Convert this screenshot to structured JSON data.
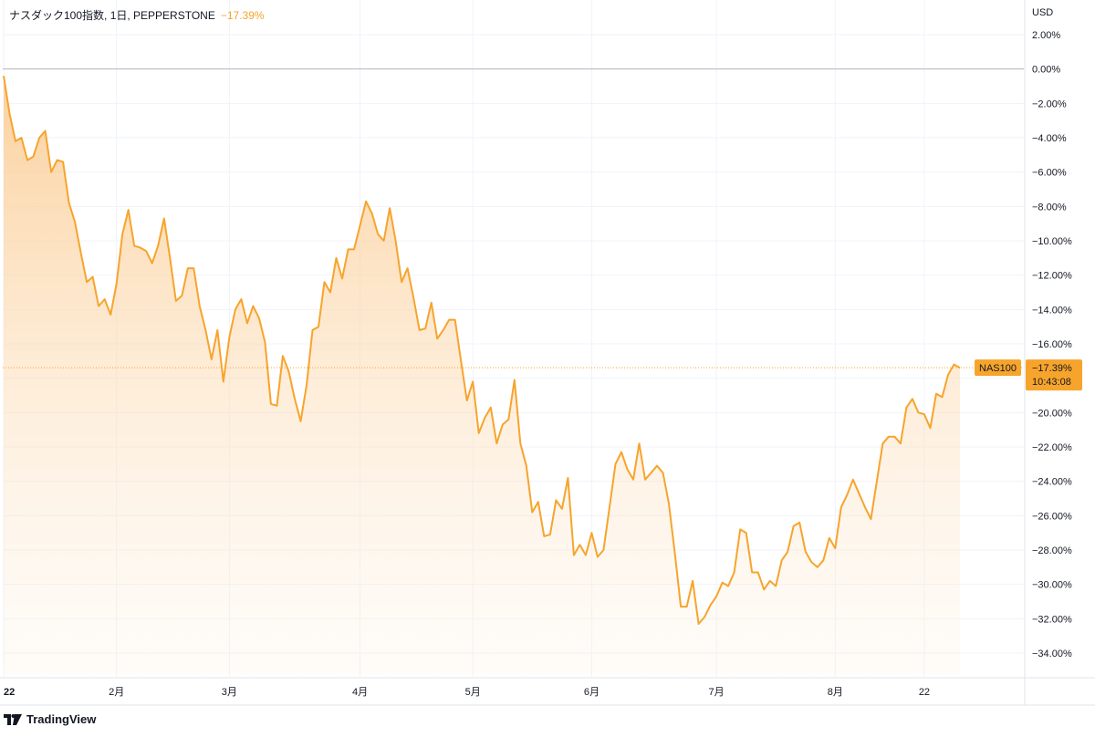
{
  "header": {
    "title": "ナスダック100指数, 1日, PEPPERSTONE",
    "change": "−17.39%"
  },
  "axis": {
    "currency": "USD"
  },
  "price_tag": {
    "symbol": "NAS100",
    "value": "−17.39%",
    "countdown": "10:43:08"
  },
  "branding": {
    "name": "TradingView"
  },
  "colors": {
    "line": "#f7a42c",
    "fill": "#fcd3a0",
    "grid": "#f0f3fa",
    "zero_line": "#b2b5be",
    "tag_bg": "#f7a42c"
  },
  "chart_data": {
    "type": "area",
    "title": "ナスダック100指数, 1日, PEPPERSTONE",
    "ylabel": "USD",
    "ylim": [
      -35.9,
      3.9
    ],
    "yticks": [
      2,
      0,
      -2,
      -4,
      -6,
      -8,
      -10,
      -12,
      -14,
      -16,
      -18,
      -20,
      -22,
      -24,
      -26,
      -28,
      -30,
      -32,
      -34
    ],
    "ytick_labels": [
      "2.00%",
      "0.00%",
      "−2.00%",
      "−4.00%",
      "−6.00%",
      "−8.00%",
      "−10.00%",
      "−12.00%",
      "−14.00%",
      "−16.00%",
      "−18.00%",
      "−20.00%",
      "−22.00%",
      "−24.00%",
      "−26.00%",
      "−28.00%",
      "−30.00%",
      "−32.00%",
      "−34.00%"
    ],
    "x_range": [
      0,
      161
    ],
    "xticks": [
      {
        "label": "22",
        "index": 0,
        "bold": true
      },
      {
        "label": "2月",
        "index": 19
      },
      {
        "label": "3月",
        "index": 38
      },
      {
        "label": "4月",
        "index": 60
      },
      {
        "label": "5月",
        "index": 79
      },
      {
        "label": "6月",
        "index": 99
      },
      {
        "label": "7月",
        "index": 120
      },
      {
        "label": "8月",
        "index": 140
      },
      {
        "label": "22",
        "index": 155
      }
    ],
    "reference_line": 0,
    "last_value": -17.39,
    "grid": true,
    "series": [
      {
        "values": [
          -0.4,
          -2.6,
          -4.2,
          -4.0,
          -5.3,
          -5.1,
          -4.0,
          -3.6,
          -6.0,
          -5.3,
          -5.4,
          -7.8,
          -8.9,
          -10.7,
          -12.4,
          -12.1,
          -13.8,
          -13.4,
          -14.3,
          -12.5,
          -9.6,
          -8.2,
          -10.3,
          -10.4,
          -10.6,
          -11.3,
          -10.3,
          -8.7,
          -11.0,
          -13.5,
          -13.2,
          -11.6,
          -11.6,
          -13.8,
          -15.2,
          -16.9,
          -15.2,
          -18.2,
          -15.6,
          -14.0,
          -13.4,
          -14.8,
          -13.8,
          -14.5,
          -15.9,
          -19.5,
          -19.6,
          -16.7,
          -17.6,
          -19.2,
          -20.5,
          -18.4,
          -15.2,
          -15.0,
          -12.4,
          -13.0,
          -11.0,
          -12.2,
          -10.5,
          -10.5,
          -9.1,
          -7.7,
          -8.4,
          -9.6,
          -10.0,
          -8.1,
          -10.0,
          -12.4,
          -11.6,
          -13.3,
          -15.2,
          -15.1,
          -13.6,
          -15.7,
          -15.2,
          -14.6,
          -14.6,
          -17.0,
          -19.3,
          -18.2,
          -21.2,
          -20.3,
          -19.7,
          -21.8,
          -20.7,
          -20.4,
          -18.1,
          -21.8,
          -23.1,
          -25.8,
          -25.2,
          -27.2,
          -27.1,
          -25.1,
          -25.6,
          -23.8,
          -28.3,
          -27.7,
          -28.3,
          -27.0,
          -28.4,
          -28.0,
          -25.5,
          -23.0,
          -22.3,
          -23.3,
          -23.9,
          -21.8,
          -23.9,
          -23.5,
          -23.1,
          -23.5,
          -25.3,
          -28.2,
          -31.3,
          -31.3,
          -29.8,
          -32.3,
          -31.9,
          -31.2,
          -30.7,
          -29.9,
          -30.1,
          -29.3,
          -26.8,
          -27.0,
          -29.3,
          -29.3,
          -30.3,
          -29.8,
          -30.1,
          -28.6,
          -28.1,
          -26.6,
          -26.4,
          -28.1,
          -28.7,
          -29.0,
          -28.6,
          -27.3,
          -27.9,
          -25.5,
          -24.8,
          -23.9,
          -24.7,
          -25.5,
          -26.2,
          -24.0,
          -21.8,
          -21.4,
          -21.4,
          -21.8,
          -19.7,
          -19.2,
          -20.0,
          -20.1,
          -20.9,
          -18.9,
          -19.1,
          -17.8,
          -17.2,
          -17.39
        ]
      }
    ]
  }
}
